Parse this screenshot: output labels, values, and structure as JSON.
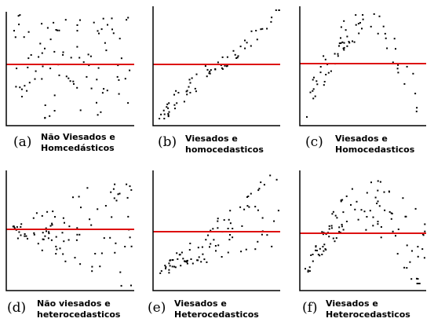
{
  "colors": {
    "axis": "#000000",
    "line": "#dd1111",
    "dots": "#000000",
    "background": "#ffffff"
  },
  "panels": [
    {
      "id": "a",
      "tag": "(a)",
      "caption": [
        "Não Viesados e",
        "Homcedásticos"
      ]
    },
    {
      "id": "b",
      "tag": "(b)",
      "caption": [
        "Viesados e",
        "homocedasticos"
      ]
    },
    {
      "id": "c",
      "tag": "(c)",
      "caption": [
        "Viesados e",
        "Homocedasticos"
      ]
    },
    {
      "id": "d",
      "tag": "(d)",
      "caption": [
        "Não viesados e",
        "heterocedasticos"
      ]
    },
    {
      "id": "e",
      "tag": "(e)",
      "caption": [
        "Viesados e",
        "Heterocedasticos"
      ]
    },
    {
      "id": "f",
      "tag": "(f)",
      "caption": [
        "Viesados e",
        "Heterocedasticos"
      ]
    }
  ]
}
